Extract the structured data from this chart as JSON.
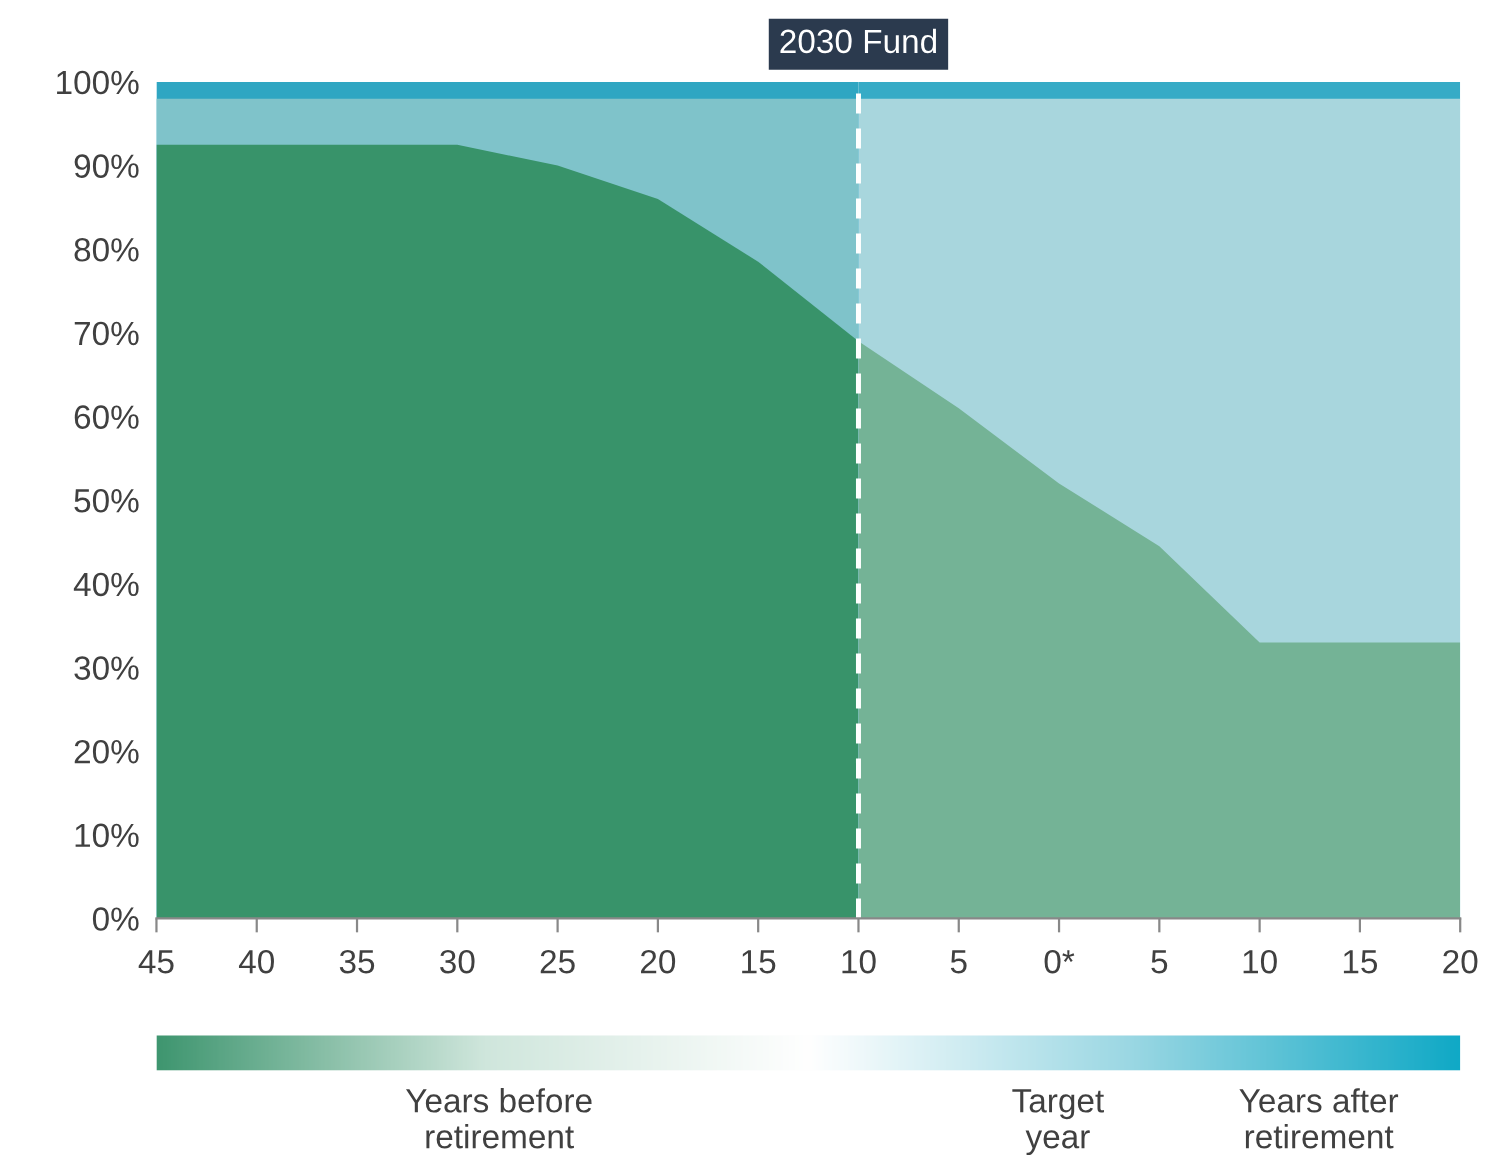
{
  "chart_data": {
    "type": "area",
    "series": [
      {
        "color": "#2fa6c2",
        "x": [
          -45,
          -40,
          -35,
          -30,
          -25,
          -20,
          -15,
          -10
        ],
        "values": [
          100,
          100,
          100,
          100,
          100,
          100,
          100,
          100
        ]
      },
      {
        "color": "#7fc3ca",
        "x": [
          -45,
          -40,
          -35,
          -30,
          -25,
          -20,
          -15,
          -10
        ],
        "values": [
          98,
          98,
          98,
          98,
          98,
          98,
          98,
          98
        ]
      },
      {
        "color": "#38936a",
        "x": [
          -45,
          -40,
          -35,
          -30,
          -25,
          -20,
          -15,
          -10
        ],
        "values": [
          92.5,
          92.5,
          92.5,
          92.5,
          90,
          86,
          78.5,
          69
        ]
      },
      {
        "color": "#36abc6",
        "x": [
          -10,
          -5,
          0,
          5,
          10,
          15,
          20
        ],
        "values": [
          100,
          100,
          100,
          100,
          100,
          100,
          100
        ]
      },
      {
        "color": "#a8d6dd",
        "x": [
          -10,
          -5,
          0,
          5,
          10,
          15,
          20
        ],
        "values": [
          98,
          98,
          98,
          98,
          98,
          98,
          98
        ]
      },
      {
        "color": "#74b396",
        "x": [
          -10,
          -5,
          0,
          5,
          10,
          15,
          20
        ],
        "values": [
          69,
          61,
          52,
          44.5,
          33,
          33,
          33
        ]
      }
    ],
    "xlim": [
      -45,
      20
    ],
    "xticks": [
      {
        "value": -45,
        "label": "45"
      },
      {
        "value": -40,
        "label": "40"
      },
      {
        "value": -35,
        "label": "35"
      },
      {
        "value": -30,
        "label": "30"
      },
      {
        "value": -25,
        "label": "25"
      },
      {
        "value": -20,
        "label": "20"
      },
      {
        "value": -15,
        "label": "15"
      },
      {
        "value": -10,
        "label": "10"
      },
      {
        "value": -5,
        "label": "5"
      },
      {
        "value": 0,
        "label": "0*"
      },
      5,
      10,
      15,
      20
    ],
    "ylim": [
      0,
      100
    ],
    "yticks": [
      {
        "value": 0,
        "label": "0%"
      },
      {
        "value": 10,
        "label": "10%"
      },
      {
        "value": 20,
        "label": "20%"
      },
      {
        "value": 30,
        "label": "30%"
      },
      {
        "value": 40,
        "label": "40%"
      },
      {
        "value": 50,
        "label": "50%"
      },
      {
        "value": 60,
        "label": "60%"
      },
      {
        "value": 70,
        "label": "70%"
      },
      {
        "value": 80,
        "label": "80%"
      },
      {
        "value": 90,
        "label": "90%"
      },
      {
        "value": 100,
        "label": "100%"
      }
    ],
    "ref_lines": [
      {
        "axis": "x",
        "value": -10,
        "label": "2030 Fund",
        "color": "#ffffff",
        "line_style": "dashed"
      }
    ],
    "annotations": [
      "Years before\nretirement",
      "Target\nyear",
      "Years after\nretirement"
    ],
    "grid": false,
    "legend": false
  }
}
